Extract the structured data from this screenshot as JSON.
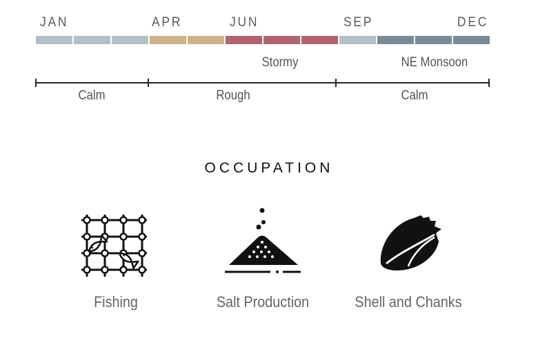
{
  "timeline": {
    "months": [
      "JAN",
      "APR",
      "JUN",
      "SEP",
      "DEC"
    ],
    "segment_colors": [
      "#b4bec6",
      "#b4bec6",
      "#b4bec6",
      "#cfb287",
      "#cfb287",
      "#b0646f",
      "#b0646f",
      "#b0646f",
      "#b4bec6",
      "#7b8b96",
      "#7b8b96",
      "#7b8b96"
    ],
    "weather": [
      "Stormy",
      "NE Monsoon"
    ],
    "sea": [
      "Calm",
      "Rough",
      "Calm"
    ]
  },
  "occupation": {
    "title": "OCCUPATION",
    "items": [
      {
        "label": "Fishing",
        "icon": "fishing-net-icon"
      },
      {
        "label": "Salt Production",
        "icon": "salt-pile-icon"
      },
      {
        "label": "Shell and Chanks",
        "icon": "conch-shell-icon"
      }
    ]
  }
}
